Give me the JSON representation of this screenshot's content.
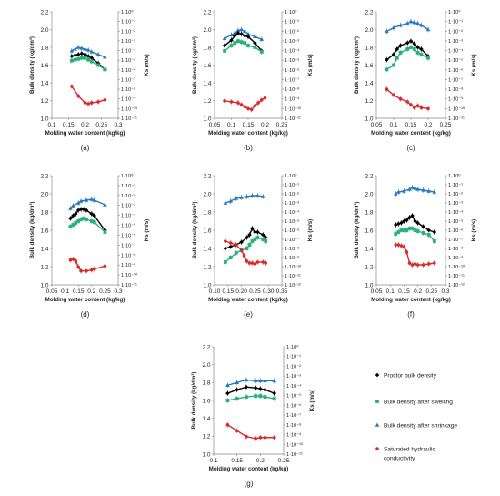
{
  "colors": {
    "proctor": "#000000",
    "swelling": "#27b07a",
    "shrinkage": "#2778c2",
    "ks": "#d62b2b"
  },
  "legend": [
    {
      "key": "proctor",
      "marker": "diamond",
      "label": [
        "Proctor bulk density"
      ]
    },
    {
      "key": "swelling",
      "marker": "square",
      "label": [
        "Bulk density after swelling"
      ]
    },
    {
      "key": "shrinkage",
      "marker": "triangle",
      "label": [
        "Bulk density after shrinkage"
      ]
    },
    {
      "key": "ks",
      "marker": "circle",
      "label": [
        "Saturated hydraulic",
        "conductivity"
      ]
    }
  ],
  "chart_data": [
    {
      "type": "scatter",
      "label": "(a)",
      "xlabel": "Molding water content (kg/kg)",
      "ylabel": "Bulk density (kg/dm³)",
      "y2label": "Ks (m/s)",
      "xlim": [
        0.1,
        0.3
      ],
      "xticks": [
        "0.1",
        "0.15",
        "0.2",
        "0.25",
        "0.3"
      ],
      "ylim": [
        1.0,
        2.2
      ],
      "yticks": [
        "1.0",
        "1.2",
        "1.4",
        "1.6",
        "1.8",
        "2.0",
        "2.2"
      ],
      "y2_exp_range": [
        -11,
        0
      ],
      "y2ticks": [
        "1·10⁰",
        "1·10⁻¹",
        "1·10⁻²",
        "1·10⁻³",
        "1·10⁻⁴",
        "1·10⁻⁵",
        "1·10⁻⁶",
        "1·10⁻⁷",
        "1·10⁻⁸",
        "1·10⁻⁹",
        "1·10⁻¹⁰",
        "1·10⁻¹¹"
      ],
      "series": {
        "shrinkage": {
          "x": [
            0.16,
            0.17,
            0.18,
            0.19,
            0.2,
            0.21,
            0.22,
            0.24,
            0.26
          ],
          "y": [
            1.76,
            1.78,
            1.8,
            1.79,
            1.78,
            1.77,
            1.75,
            1.72,
            1.69
          ]
        },
        "proctor": {
          "x": [
            0.16,
            0.17,
            0.18,
            0.19,
            0.2,
            0.21,
            0.22,
            0.24,
            0.26
          ],
          "y": [
            1.7,
            1.71,
            1.72,
            1.73,
            1.72,
            1.7,
            1.68,
            1.62,
            1.55
          ]
        },
        "swelling": {
          "x": [
            0.16,
            0.17,
            0.18,
            0.19,
            0.2,
            0.21,
            0.22,
            0.24,
            0.26
          ],
          "y": [
            1.65,
            1.66,
            1.67,
            1.68,
            1.68,
            1.66,
            1.64,
            1.6,
            1.55
          ]
        },
        "ks": {
          "x": [
            0.16,
            0.18,
            0.2,
            0.21,
            0.22,
            0.24,
            0.26
          ],
          "exp": [
            -7.7,
            -8.7,
            -9.4,
            -9.5,
            -9.4,
            -9.3,
            -9.1
          ]
        }
      }
    },
    {
      "type": "scatter",
      "label": "(b)",
      "xlabel": "Molding water content (kg/kg)",
      "ylabel": "Bulk density (kg/dm³)",
      "y2label": "Ks (m/s)",
      "xlim": [
        0.05,
        0.25
      ],
      "xticks": [
        "0.05",
        "0.1",
        "0.15",
        "0.2",
        "0.25"
      ],
      "ylim": [
        1.0,
        2.2
      ],
      "yticks": [
        "1.0",
        "1.2",
        "1.4",
        "1.6",
        "1.8",
        "2.0",
        "2.2"
      ],
      "y2_exp_range": [
        -11,
        0
      ],
      "y2ticks": [
        "1·10⁰",
        "1·10⁻¹",
        "1·10⁻²",
        "1·10⁻³",
        "1·10⁻⁴",
        "1·10⁻⁵",
        "1·10⁻⁶",
        "1·10⁻⁷",
        "1·10⁻⁸",
        "1·10⁻⁹",
        "1·10⁻¹⁰",
        "1·10⁻¹¹"
      ],
      "series": {
        "shrinkage": {
          "x": [
            0.08,
            0.1,
            0.11,
            0.12,
            0.13,
            0.14,
            0.15,
            0.17,
            0.19
          ],
          "y": [
            1.9,
            1.94,
            1.96,
            1.99,
            2.0,
            1.98,
            1.95,
            1.92,
            1.89
          ]
        },
        "proctor": {
          "x": [
            0.08,
            0.1,
            0.11,
            0.12,
            0.13,
            0.14,
            0.15,
            0.17,
            0.19
          ],
          "y": [
            1.82,
            1.88,
            1.93,
            1.96,
            1.95,
            1.93,
            1.92,
            1.85,
            1.76
          ]
        },
        "swelling": {
          "x": [
            0.08,
            0.1,
            0.11,
            0.12,
            0.13,
            0.14,
            0.15,
            0.17,
            0.19
          ],
          "y": [
            1.76,
            1.82,
            1.85,
            1.87,
            1.86,
            1.85,
            1.82,
            1.8,
            1.75
          ]
        },
        "ks": {
          "x": [
            0.08,
            0.1,
            0.12,
            0.13,
            0.14,
            0.15,
            0.16,
            0.17,
            0.18,
            0.19,
            0.2
          ],
          "exp": [
            -9.2,
            -9.3,
            -9.4,
            -9.6,
            -9.8,
            -10.0,
            -10.1,
            -9.7,
            -9.4,
            -9.1,
            -8.9
          ]
        }
      }
    },
    {
      "type": "scatter",
      "label": "(c)",
      "xlabel": "Molding water content (kg/kg)",
      "ylabel": "Bulk density (kg/dm³)",
      "y2label": "Ks (m/s)",
      "xlim": [
        0.05,
        0.25
      ],
      "xticks": [
        "0.05",
        "0.1",
        "0.15",
        "0.2",
        "0.25"
      ],
      "ylim": [
        1.0,
        2.2
      ],
      "yticks": [
        "1.0",
        "1.2",
        "1.4",
        "1.6",
        "1.8",
        "2.0",
        "2.2"
      ],
      "y2_exp_range": [
        -11,
        0
      ],
      "y2ticks": [
        "1·10⁰",
        "1·10⁻¹",
        "1·10⁻²",
        "1·10⁻³",
        "1·10⁻⁴",
        "1·10⁻⁵",
        "1·10⁻⁶",
        "1·10⁻⁷",
        "1·10⁻⁸",
        "1·10⁻⁹",
        "1·10⁻¹⁰",
        "1·10⁻¹¹"
      ],
      "series": {
        "shrinkage": {
          "x": [
            0.08,
            0.1,
            0.12,
            0.14,
            0.15,
            0.16,
            0.17,
            0.18,
            0.2
          ],
          "y": [
            1.98,
            2.02,
            2.05,
            2.07,
            2.09,
            2.08,
            2.07,
            2.05,
            2.0
          ]
        },
        "proctor": {
          "x": [
            0.08,
            0.1,
            0.11,
            0.12,
            0.14,
            0.15,
            0.16,
            0.17,
            0.18,
            0.2
          ],
          "y": [
            1.66,
            1.72,
            1.78,
            1.82,
            1.85,
            1.87,
            1.84,
            1.8,
            1.78,
            1.7
          ]
        },
        "swelling": {
          "x": [
            0.08,
            0.1,
            0.11,
            0.12,
            0.14,
            0.15,
            0.16,
            0.17,
            0.18,
            0.2
          ],
          "y": [
            1.55,
            1.6,
            1.68,
            1.74,
            1.78,
            1.8,
            1.78,
            1.74,
            1.72,
            1.68
          ]
        },
        "ks": {
          "x": [
            0.08,
            0.1,
            0.12,
            0.14,
            0.15,
            0.16,
            0.17,
            0.18,
            0.2
          ],
          "exp": [
            -8.0,
            -8.6,
            -9.0,
            -9.3,
            -9.6,
            -9.9,
            -9.7,
            -9.9,
            -10.0
          ]
        }
      }
    },
    {
      "type": "scatter",
      "label": "(d)",
      "xlabel": "Molding water content (kg/kg)",
      "ylabel": "Bulk density (kg/dm³)",
      "y2label": "Ks (m/s)",
      "xlim": [
        0.05,
        0.3
      ],
      "xticks": [
        "0.05",
        "0.1",
        "0.15",
        "0.2",
        "0.25",
        "0.3"
      ],
      "ylim": [
        1.0,
        2.2
      ],
      "yticks": [
        "1.0",
        "1.2",
        "1.4",
        "1.6",
        "1.8",
        "2.0",
        "2.2"
      ],
      "y2_exp_range": [
        -11,
        0
      ],
      "y2ticks": [
        "1·10⁰",
        "1·10⁻¹",
        "1·10⁻²",
        "1·10⁻³",
        "1·10⁻⁴",
        "1·10⁻⁵",
        "1·10⁻⁶",
        "1·10⁻⁷",
        "1·10⁻⁸",
        "1·10⁻⁹",
        "1·10⁻¹⁰",
        "1·10⁻¹¹"
      ],
      "series": {
        "shrinkage": {
          "x": [
            0.12,
            0.13,
            0.15,
            0.16,
            0.18,
            0.2,
            0.21,
            0.25
          ],
          "y": [
            1.84,
            1.87,
            1.9,
            1.92,
            1.93,
            1.94,
            1.93,
            1.88
          ]
        },
        "proctor": {
          "x": [
            0.12,
            0.13,
            0.14,
            0.15,
            0.16,
            0.17,
            0.18,
            0.2,
            0.21,
            0.25
          ],
          "y": [
            1.73,
            1.76,
            1.78,
            1.82,
            1.83,
            1.83,
            1.82,
            1.78,
            1.76,
            1.6
          ]
        },
        "swelling": {
          "x": [
            0.12,
            0.13,
            0.14,
            0.15,
            0.16,
            0.17,
            0.18,
            0.2,
            0.21,
            0.25
          ],
          "y": [
            1.64,
            1.66,
            1.68,
            1.7,
            1.72,
            1.73,
            1.72,
            1.7,
            1.69,
            1.58
          ]
        },
        "ks": {
          "x": [
            0.12,
            0.13,
            0.14,
            0.15,
            0.16,
            0.18,
            0.2,
            0.21,
            0.25
          ],
          "exp": [
            -8.5,
            -8.4,
            -8.6,
            -9.2,
            -9.6,
            -9.6,
            -9.5,
            -9.4,
            -9.1
          ]
        }
      }
    },
    {
      "type": "scatter",
      "label": "(e)",
      "xlabel": "Molding water content (kg/kg)",
      "ylabel": "Bulk density (kg/dm³)",
      "y2label": "Ks (m/s)",
      "xlim": [
        0.1,
        0.35
      ],
      "xticks": [
        "0.10",
        "0.15",
        "0.20",
        "0.25",
        "0.30",
        "0.35"
      ],
      "ylim": [
        1.0,
        2.2
      ],
      "yticks": [
        "1.0",
        "1.2",
        "1.4",
        "1.6",
        "1.8",
        "2.0",
        "2.2"
      ],
      "y2_exp_range": [
        -12,
        0
      ],
      "y2ticks": [
        "1·10⁰",
        "1·10⁻¹",
        "1·10⁻²",
        "1·10⁻³",
        "1·10⁻⁴",
        "1·10⁻⁵",
        "1·10⁻⁶",
        "1·10⁻⁷",
        "1·10⁻⁸",
        "1·10⁻⁹",
        "1·10⁻¹⁰",
        "1·10⁻¹¹",
        "1·10⁻¹²"
      ],
      "series": {
        "shrinkage": {
          "x": [
            0.14,
            0.16,
            0.18,
            0.2,
            0.22,
            0.24,
            0.26,
            0.28
          ],
          "y": [
            1.9,
            1.92,
            1.95,
            1.96,
            1.97,
            1.98,
            1.98,
            1.97
          ]
        },
        "proctor": {
          "x": [
            0.14,
            0.16,
            0.18,
            0.2,
            0.22,
            0.23,
            0.24,
            0.25,
            0.26,
            0.28,
            0.29
          ],
          "y": [
            1.4,
            1.42,
            1.44,
            1.47,
            1.52,
            1.55,
            1.62,
            1.58,
            1.58,
            1.55,
            1.52
          ]
        },
        "swelling": {
          "x": [
            0.14,
            0.16,
            0.18,
            0.2,
            0.22,
            0.23,
            0.24,
            0.25,
            0.26,
            0.28,
            0.29
          ],
          "y": [
            1.25,
            1.3,
            1.35,
            1.38,
            1.4,
            1.44,
            1.48,
            1.5,
            1.52,
            1.5,
            1.48
          ]
        },
        "ks": {
          "x": [
            0.14,
            0.16,
            0.18,
            0.2,
            0.21,
            0.22,
            0.23,
            0.24,
            0.25,
            0.26,
            0.28,
            0.29
          ],
          "exp": [
            -7.2,
            -7.4,
            -7.6,
            -8.2,
            -8.8,
            -9.4,
            -9.6,
            -9.6,
            -9.7,
            -9.5,
            -9.5,
            -9.6
          ]
        }
      }
    },
    {
      "type": "scatter",
      "label": "(f)",
      "xlabel": "Molding water content (kg/kg)",
      "ylabel": "Bulk density (kg/dm³)",
      "y2label": "Ks (m/s)",
      "xlim": [
        0.05,
        0.3
      ],
      "xticks": [
        "0.05",
        "0.1",
        "0.15",
        "0.2",
        "0.25",
        "0.3"
      ],
      "ylim": [
        1.0,
        2.2
      ],
      "yticks": [
        "1.0",
        "1.2",
        "1.4",
        "1.6",
        "1.8",
        "2.0",
        "2.2"
      ],
      "y2_exp_range": [
        -12,
        0
      ],
      "y2ticks": [
        "1·10⁰",
        "1·10⁻¹",
        "1·10⁻²",
        "1·10⁻³",
        "1·10⁻⁴",
        "1·10⁻⁵",
        "1·10⁻⁶",
        "1·10⁻⁷",
        "1·10⁻⁸",
        "1·10⁻⁹",
        "1·10⁻¹⁰",
        "1·10⁻¹¹",
        "1·10⁻¹²"
      ],
      "series": {
        "shrinkage": {
          "x": [
            0.12,
            0.13,
            0.15,
            0.17,
            0.18,
            0.19,
            0.2,
            0.22,
            0.24,
            0.26
          ],
          "y": [
            2.0,
            2.02,
            2.03,
            2.05,
            2.07,
            2.06,
            2.05,
            2.04,
            2.03,
            2.02
          ]
        },
        "proctor": {
          "x": [
            0.12,
            0.13,
            0.14,
            0.15,
            0.16,
            0.17,
            0.18,
            0.19,
            0.2,
            0.22,
            0.24,
            0.26
          ],
          "y": [
            1.66,
            1.67,
            1.68,
            1.7,
            1.71,
            1.74,
            1.76,
            1.7,
            1.68,
            1.64,
            1.6,
            1.58
          ]
        },
        "swelling": {
          "x": [
            0.12,
            0.13,
            0.14,
            0.15,
            0.16,
            0.17,
            0.18,
            0.19,
            0.2,
            0.22,
            0.24,
            0.26
          ],
          "y": [
            1.56,
            1.58,
            1.6,
            1.6,
            1.6,
            1.62,
            1.62,
            1.6,
            1.59,
            1.57,
            1.55,
            1.48
          ]
        },
        "ks": {
          "x": [
            0.12,
            0.13,
            0.14,
            0.15,
            0.16,
            0.17,
            0.18,
            0.19,
            0.2,
            0.22,
            0.24,
            0.26
          ],
          "exp": [
            -7.6,
            -7.6,
            -7.7,
            -7.8,
            -8.4,
            -9.6,
            -9.8,
            -9.7,
            -9.8,
            -9.8,
            -9.7,
            -9.6
          ]
        }
      }
    },
    {
      "type": "scatter",
      "label": "(g)",
      "xlabel": "Molding water content (kg/kg)",
      "ylabel": "Bulk density (kg/dm³)",
      "y2label": "Ks (m/s)",
      "xlim": [
        0.1,
        0.25
      ],
      "xticks": [
        "0.1",
        "0.15",
        "0.2",
        "0.25"
      ],
      "ylim": [
        1.0,
        2.2
      ],
      "yticks": [
        "1.0",
        "1.2",
        "1.4",
        "1.6",
        "1.8",
        "2.0",
        "2.2"
      ],
      "y2_exp_range": [
        -11,
        0
      ],
      "y2ticks": [
        "1·10⁰",
        "1·10⁻¹",
        "1·10⁻²",
        "1·10⁻³",
        "1·10⁻⁴",
        "1·10⁻⁵",
        "1·10⁻⁶",
        "1·10⁻⁷",
        "1·10⁻⁸",
        "1·10⁻⁹",
        "1·10⁻¹⁰",
        "1·10⁻¹¹"
      ],
      "series": {
        "shrinkage": {
          "x": [
            0.13,
            0.15,
            0.17,
            0.19,
            0.2,
            0.21,
            0.23
          ],
          "y": [
            1.77,
            1.8,
            1.83,
            1.82,
            1.82,
            1.82,
            1.82
          ]
        },
        "proctor": {
          "x": [
            0.13,
            0.15,
            0.17,
            0.19,
            0.2,
            0.21,
            0.23
          ],
          "y": [
            1.68,
            1.72,
            1.75,
            1.74,
            1.73,
            1.72,
            1.68
          ]
        },
        "swelling": {
          "x": [
            0.13,
            0.15,
            0.17,
            0.19,
            0.2,
            0.21,
            0.23
          ],
          "y": [
            1.6,
            1.62,
            1.64,
            1.65,
            1.65,
            1.64,
            1.62
          ]
        },
        "ks": {
          "x": [
            0.13,
            0.15,
            0.17,
            0.19,
            0.2,
            0.21,
            0.23
          ],
          "exp": [
            -8.0,
            -8.6,
            -9.2,
            -9.4,
            -9.3,
            -9.3,
            -9.3
          ]
        }
      }
    }
  ]
}
